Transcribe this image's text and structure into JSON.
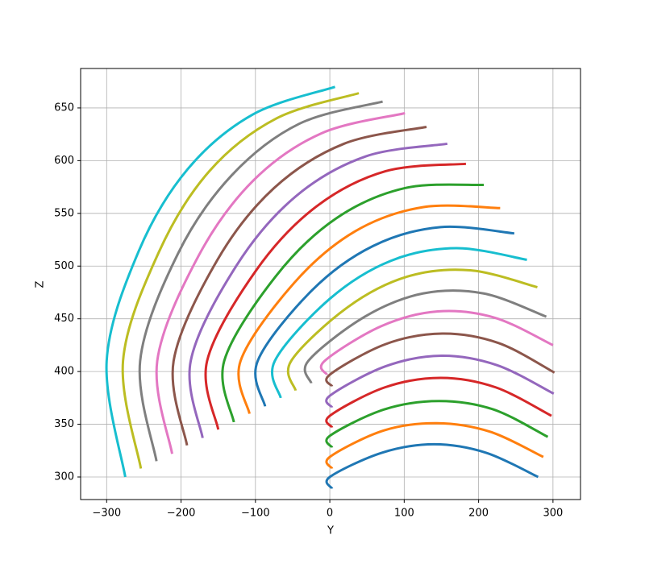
{
  "chart_data": {
    "type": "line",
    "xlabel": "Y",
    "ylabel": "Z",
    "xlim": [
      -335,
      337
    ],
    "ylim": [
      278.6,
      687.4
    ],
    "xticks": [
      {
        "value": -300,
        "label": "−300"
      },
      {
        "value": -200,
        "label": "−200"
      },
      {
        "value": -100,
        "label": "−100"
      },
      0,
      100,
      200,
      300
    ],
    "yticks": [
      300,
      350,
      400,
      450,
      500,
      550,
      600,
      650
    ],
    "grid": true,
    "series": [
      {
        "color": "#1f77b4",
        "x": [
          3,
          0,
          70,
          140,
          210,
          280
        ],
        "values": [
          289,
          300,
          323,
          331,
          323,
          300
        ]
      },
      {
        "color": "#ff7f0e",
        "x": [
          3,
          0,
          72,
          144,
          215,
          287
        ],
        "values": [
          308,
          319,
          344,
          351,
          343,
          319
        ]
      },
      {
        "color": "#2ca02c",
        "x": [
          3,
          0,
          73,
          147,
          220,
          293
        ],
        "values": [
          328,
          339,
          364,
          372,
          364,
          338
        ]
      },
      {
        "color": "#d62728",
        "x": [
          3,
          0,
          74,
          149,
          223,
          298
        ],
        "values": [
          347,
          358,
          385,
          394,
          385,
          358
        ]
      },
      {
        "color": "#9467bd",
        "x": [
          3,
          0,
          75,
          150,
          225,
          301
        ],
        "values": [
          366,
          377,
          405,
          415,
          406,
          379
        ]
      },
      {
        "color": "#8c564b",
        "x": [
          3,
          0,
          75,
          151,
          227,
          302
        ],
        "values": [
          386,
          397,
          426,
          436,
          427,
          399
        ]
      },
      {
        "color": "#e377c2",
        "x": [
          -4,
          -7,
          69,
          145,
          222,
          300
        ],
        "values": [
          397,
          410,
          443,
          457,
          451,
          425
        ]
      },
      {
        "color": "#7f7f7f",
        "x": [
          -25,
          -29,
          47,
          125,
          207,
          291
        ],
        "values": [
          389,
          410,
          452,
          474,
          474,
          452
        ]
      },
      {
        "color": "#bcbd22",
        "x": [
          -46,
          -52,
          24,
          104,
          189,
          279
        ],
        "values": [
          382,
          410,
          461,
          490,
          496,
          480
        ]
      },
      {
        "color": "#17becf",
        "x": [
          -66,
          -74,
          0,
          82,
          170,
          265
        ],
        "values": [
          375,
          410,
          469,
          505,
          517,
          506
        ]
      },
      {
        "color": "#1f77b4",
        "x": [
          -87,
          -97,
          -24,
          58,
          149,
          248
        ],
        "values": [
          367,
          410,
          477,
          519,
          537,
          531
        ]
      },
      {
        "color": "#ff7f0e",
        "x": [
          -108,
          -120,
          -48,
          34,
          126,
          229
        ],
        "values": [
          360,
          410,
          484,
          533,
          556,
          555
        ]
      },
      {
        "color": "#2ca02c",
        "x": [
          -129,
          -142,
          -73,
          8,
          101,
          207
        ],
        "values": [
          352,
          410,
          490,
          545,
          574,
          577
        ]
      },
      {
        "color": "#d62728",
        "x": [
          -150,
          -165,
          -99,
          -19,
          75,
          183
        ],
        "values": [
          345,
          410,
          496,
          556,
          590,
          597
        ]
      },
      {
        "color": "#9467bd",
        "x": [
          -171,
          -187,
          -125,
          -46,
          48,
          158
        ],
        "values": [
          337,
          410,
          501,
          566,
          604,
          616
        ]
      },
      {
        "color": "#8c564b",
        "x": [
          -192,
          -210,
          -151,
          -75,
          19,
          130
        ],
        "values": [
          330,
          410,
          506,
          574,
          616,
          632
        ]
      },
      {
        "color": "#e377c2",
        "x": [
          -212,
          -232,
          -177,
          -103,
          -11,
          101
        ],
        "values": [
          322,
          410,
          509,
          581,
          626,
          645
        ]
      },
      {
        "color": "#7f7f7f",
        "x": [
          -233,
          -255,
          -204,
          -132,
          -41,
          71
        ],
        "values": [
          315,
          410,
          512,
          586,
          635,
          656
        ]
      },
      {
        "color": "#bcbd22",
        "x": [
          -254,
          -278,
          -230,
          -162,
          -72,
          39
        ],
        "values": [
          308,
          410,
          513,
          590,
          640,
          664
        ]
      },
      {
        "color": "#17becf",
        "x": [
          -275,
          -300,
          -257,
          -191,
          -103,
          7
        ],
        "values": [
          300,
          410,
          514,
          592,
          644,
          670
        ]
      }
    ]
  }
}
